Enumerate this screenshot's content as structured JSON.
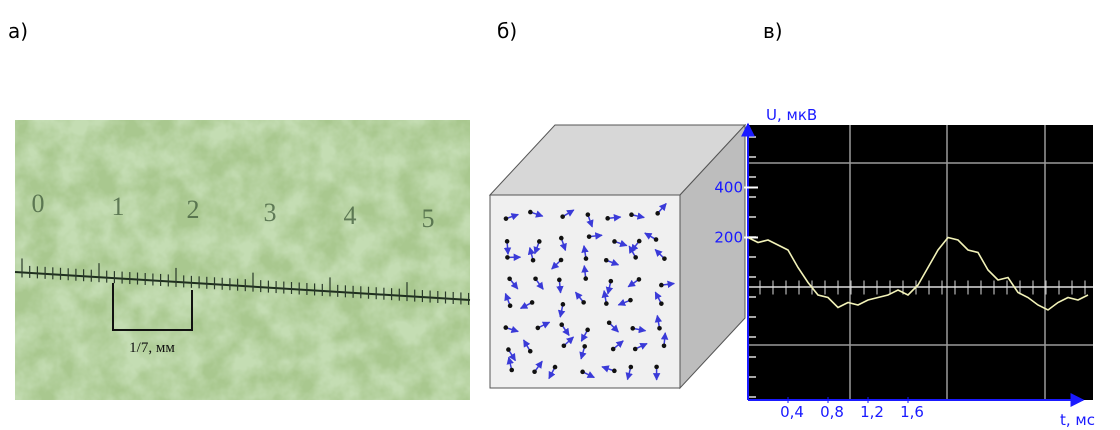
{
  "labels": {
    "a": "а)",
    "b": "б)",
    "c": "в)"
  },
  "photo": {
    "ruler_numbers": [
      "0",
      "1",
      "2",
      "3",
      "4",
      "5"
    ],
    "scale_label": "1/7, мм"
  },
  "chart_data": {
    "type": "line",
    "x_label": "t, мс",
    "y_label": "U, мкВ",
    "x": [
      0,
      0.1,
      0.2,
      0.3,
      0.4,
      0.5,
      0.6,
      0.7,
      0.8,
      0.9,
      1.0,
      1.1,
      1.2,
      1.3,
      1.4,
      1.5,
      1.6,
      1.7,
      1.8,
      1.9,
      2.0,
      2.1,
      2.2,
      2.3,
      2.4,
      2.5,
      2.6,
      2.7,
      2.8,
      2.9,
      3.0,
      3.1,
      3.2,
      3.3,
      3.4
    ],
    "series": [
      {
        "color": "#f2f2b8",
        "values": [
          200,
          180,
          190,
          170,
          150,
          80,
          20,
          -30,
          -40,
          -80,
          -60,
          -70,
          -50,
          -40,
          -30,
          -10,
          -30,
          10,
          80,
          150,
          200,
          190,
          150,
          140,
          70,
          30,
          40,
          -20,
          -40,
          -70,
          -90,
          -60,
          -40,
          -50,
          -30
        ]
      }
    ],
    "xlim": [
      0,
      3.45
    ],
    "ylim": [
      -450,
      650
    ],
    "xticks": [
      {
        "value": 0.4,
        "label": "0,4"
      },
      {
        "value": 0.8,
        "label": "0,8"
      },
      {
        "value": 1.2,
        "label": "1,2"
      },
      {
        "value": 1.6,
        "label": "1,6"
      }
    ],
    "yticks": [
      400,
      200
    ]
  }
}
